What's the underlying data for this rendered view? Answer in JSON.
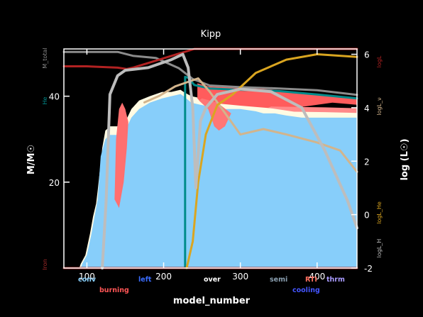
{
  "chart_data": {
    "type": "area",
    "title": "Kipp",
    "xlabel": "model_number",
    "ylabel_left": "M/M☉",
    "ylabel_right": "log (L☉)",
    "xlim": [
      70,
      452
    ],
    "ylim_left": [
      0,
      51
    ],
    "ylim_right": [
      -2,
      6.2
    ],
    "x_ticks": [
      "100",
      "200",
      "300",
      "400"
    ],
    "x_tick_values": [
      100,
      200,
      300,
      400
    ],
    "y_left_ticks": [
      "20",
      "40"
    ],
    "y_left_tick_values": [
      20,
      40
    ],
    "y_right_ticks": [
      "-2",
      "0",
      "2",
      "4",
      "6"
    ],
    "y_right_tick_values": [
      -2,
      0,
      2,
      4,
      6
    ],
    "right_axis_curve_labels": [
      "logL",
      "logL_ν",
      "logL_He",
      "logL_H"
    ],
    "left_axis_curve_labels": [
      "M_total",
      "He",
      "Iron"
    ],
    "legend": [
      {
        "label": "conv",
        "color": "#87cefa"
      },
      {
        "label": "burning",
        "color": "#ff5555"
      },
      {
        "label": "left",
        "color": "#3a6cff"
      },
      {
        "label": "over",
        "color": "#ffffff"
      },
      {
        "label": "semi",
        "color": "#8a9fb0"
      },
      {
        "label": "cooling",
        "color": "#4455ff"
      },
      {
        "label": "RTI",
        "color": "#ff6f5f"
      },
      {
        "label": "thrm",
        "color": "#a99bff"
      }
    ],
    "series": [
      {
        "name": "M_total",
        "axis": "left",
        "color": "#8c8c8c",
        "x": [
          70,
          120,
          140,
          160,
          190,
          220,
          238,
          260,
          300,
          350,
          400,
          452
        ],
        "y": [
          50.3,
          50.3,
          50.3,
          49.4,
          48.9,
          46.5,
          44.0,
          42.5,
          42.1,
          41.8,
          41.4,
          40.3
        ]
      },
      {
        "name": "He",
        "axis": "left",
        "color": "#008b8b",
        "x": [
          70,
          96,
          228,
          228,
          232,
          240,
          260,
          300,
          350,
          400,
          452
        ],
        "y": [
          0,
          0,
          0,
          44.5,
          44.3,
          42.6,
          41.8,
          41.5,
          41.2,
          40.4,
          39.5
        ]
      },
      {
        "name": "Iron",
        "axis": "left",
        "color": "#a52a2a",
        "x": [
          70,
          452
        ],
        "y": [
          0,
          0
        ]
      },
      {
        "name": "logL",
        "axis": "right",
        "color": "#b22222",
        "x": [
          70,
          100,
          140,
          152,
          160,
          240,
          300,
          360,
          452
        ],
        "y": [
          5.55,
          5.55,
          5.5,
          5.45,
          5.5,
          6.2,
          6.2,
          6.2,
          6.2
        ]
      },
      {
        "name": "logL_ν",
        "axis": "right",
        "color": "#d2b48c",
        "x": [
          175,
          195,
          215,
          245,
          260,
          300,
          330,
          360,
          400,
          430,
          452
        ],
        "y": [
          4.2,
          4.45,
          4.8,
          5.1,
          4.6,
          3.0,
          3.2,
          3.0,
          2.7,
          2.4,
          1.6
        ]
      },
      {
        "name": "logL_He",
        "axis": "right",
        "color": "#daa520",
        "x": [
          230,
          238,
          245,
          255,
          270,
          290,
          320,
          360,
          400,
          452
        ],
        "y": [
          -2,
          -1,
          1.2,
          3.0,
          4.1,
          4.5,
          5.3,
          5.8,
          6.0,
          5.9
        ]
      },
      {
        "name": "logL_H",
        "axis": "right",
        "color": "#bdbdbd",
        "x": [
          120,
          125,
          130,
          140,
          150,
          180,
          210,
          225,
          232,
          238,
          242,
          248,
          255,
          270,
          300,
          340,
          380,
          410,
          440,
          452
        ],
        "y": [
          -2,
          0.5,
          4.5,
          5.2,
          5.4,
          5.5,
          5.8,
          6.0,
          5.5,
          4.0,
          1.0,
          3.5,
          4.0,
          4.5,
          4.7,
          4.6,
          4.0,
          2.4,
          0.5,
          -0.5
        ]
      }
    ]
  }
}
